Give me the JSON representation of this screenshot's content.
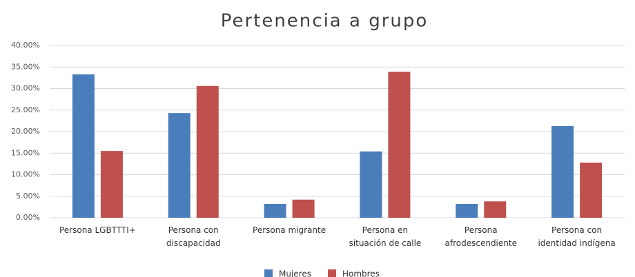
{
  "chart_data": {
    "type": "bar",
    "title": "Pertenencia a grupo",
    "categories": [
      "Persona LGBTTTI+",
      "Persona con discapacidad",
      "Persona migrante",
      "Persona en situación de calle",
      "Persona afrodescendiente",
      "Persona con identidad indígena"
    ],
    "series": [
      {
        "name": "Mujeres",
        "color": "#4a7ebb",
        "values": [
          33.3,
          24.3,
          3.2,
          15.4,
          3.2,
          21.3
        ]
      },
      {
        "name": "Hombres",
        "color": "#c0504d",
        "values": [
          15.5,
          30.6,
          4.2,
          33.9,
          3.8,
          12.8
        ]
      }
    ],
    "ylim": [
      0,
      40
    ],
    "yticks": [
      {
        "value": 0,
        "label": "0.00%"
      },
      {
        "value": 5,
        "label": "5.00%"
      },
      {
        "value": 10,
        "label": "10.00%"
      },
      {
        "value": 15,
        "label": "15.00%"
      },
      {
        "value": 20,
        "label": "20.00%"
      },
      {
        "value": 25,
        "label": "25.00%"
      },
      {
        "value": 30,
        "label": "30.00%"
      },
      {
        "value": 35,
        "label": "35.00%"
      },
      {
        "value": 40,
        "label": "40.00%"
      }
    ],
    "grid": true,
    "legend": "bottom"
  }
}
